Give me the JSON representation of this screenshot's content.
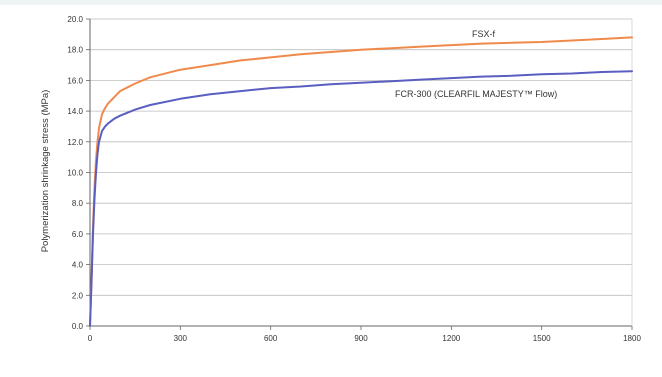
{
  "chart_data": {
    "type": "line",
    "title": "",
    "xlabel": "",
    "ylabel": "Polymerization shrinkage stress (MPa)",
    "xlim": [
      0,
      1800
    ],
    "ylim": [
      0,
      20
    ],
    "x_ticks": [
      "0",
      "300",
      "600",
      "900",
      "1200",
      "1500",
      "1800"
    ],
    "y_ticks": [
      "0.0",
      "2.0",
      "4.0",
      "6.0",
      "8.0",
      "10.0",
      "12.0",
      "14.0",
      "16.0",
      "18.0",
      "20.0"
    ],
    "grid": "horizontal",
    "legend": "inline labels",
    "series": [
      {
        "name": "FSX-f",
        "color": "#f08a4b",
        "x": [
          0,
          5,
          10,
          15,
          20,
          25,
          30,
          40,
          50,
          60,
          80,
          100,
          150,
          200,
          300,
          400,
          500,
          600,
          700,
          800,
          900,
          1000,
          1100,
          1200,
          1300,
          1400,
          1500,
          1600,
          1700,
          1800
        ],
        "y": [
          0,
          3.0,
          6.5,
          9.0,
          10.8,
          12.0,
          12.9,
          13.8,
          14.2,
          14.5,
          14.9,
          15.3,
          15.8,
          16.2,
          16.7,
          17.0,
          17.3,
          17.5,
          17.7,
          17.85,
          18.0,
          18.1,
          18.2,
          18.3,
          18.4,
          18.45,
          18.5,
          18.6,
          18.7,
          18.8
        ]
      },
      {
        "name": "FCR-300 (CLEARFIL MAJESTY™ Flow)",
        "color": "#5a5ec0",
        "x": [
          0,
          5,
          10,
          15,
          20,
          25,
          30,
          40,
          50,
          60,
          80,
          100,
          150,
          200,
          300,
          400,
          500,
          600,
          700,
          800,
          900,
          1000,
          1100,
          1200,
          1300,
          1400,
          1500,
          1600,
          1700,
          1800
        ],
        "y": [
          0,
          2.8,
          6.0,
          8.3,
          10.0,
          11.2,
          12.0,
          12.7,
          13.0,
          13.2,
          13.5,
          13.7,
          14.1,
          14.4,
          14.8,
          15.1,
          15.3,
          15.5,
          15.6,
          15.75,
          15.85,
          15.95,
          16.05,
          16.15,
          16.25,
          16.3,
          16.4,
          16.45,
          16.55,
          16.6
        ]
      }
    ]
  }
}
